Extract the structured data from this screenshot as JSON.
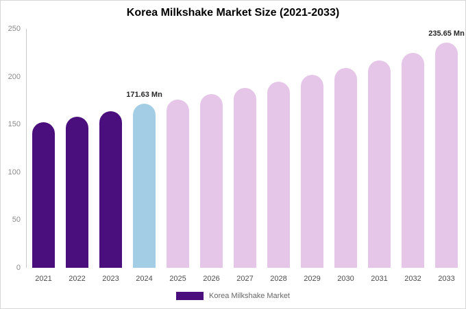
{
  "chart_data": {
    "type": "bar",
    "title": "Korea Milkshake Market Size (2021-2033)",
    "categories": [
      "2021",
      "2022",
      "2023",
      "2024",
      "2025",
      "2026",
      "2027",
      "2028",
      "2029",
      "2030",
      "2031",
      "2032",
      "2033"
    ],
    "values": [
      152,
      158,
      164,
      171.63,
      176,
      182,
      188,
      195,
      202,
      209,
      217,
      225,
      235.65
    ],
    "unit": "Mn",
    "xlabel": "",
    "ylabel": "",
    "ylim": [
      0,
      250
    ],
    "yticks": [
      0,
      50,
      100,
      150,
      200,
      250
    ],
    "grid": false,
    "bar_colors": [
      "#4a0f7d",
      "#4a0f7d",
      "#4a0f7d",
      "#a3cde4",
      "#e5c5e8",
      "#e5c5e8",
      "#e5c5e8",
      "#e5c5e8",
      "#e5c5e8",
      "#e5c5e8",
      "#e5c5e8",
      "#e5c5e8",
      "#e5c5e8"
    ],
    "annotations": [
      {
        "index": 3,
        "text": "171.63 Mn"
      },
      {
        "index": 12,
        "text": "235.65 Mn"
      }
    ],
    "legend": {
      "label": "Korea Milkshake Market",
      "color": "#4a0f7d",
      "position": "bottom"
    }
  }
}
